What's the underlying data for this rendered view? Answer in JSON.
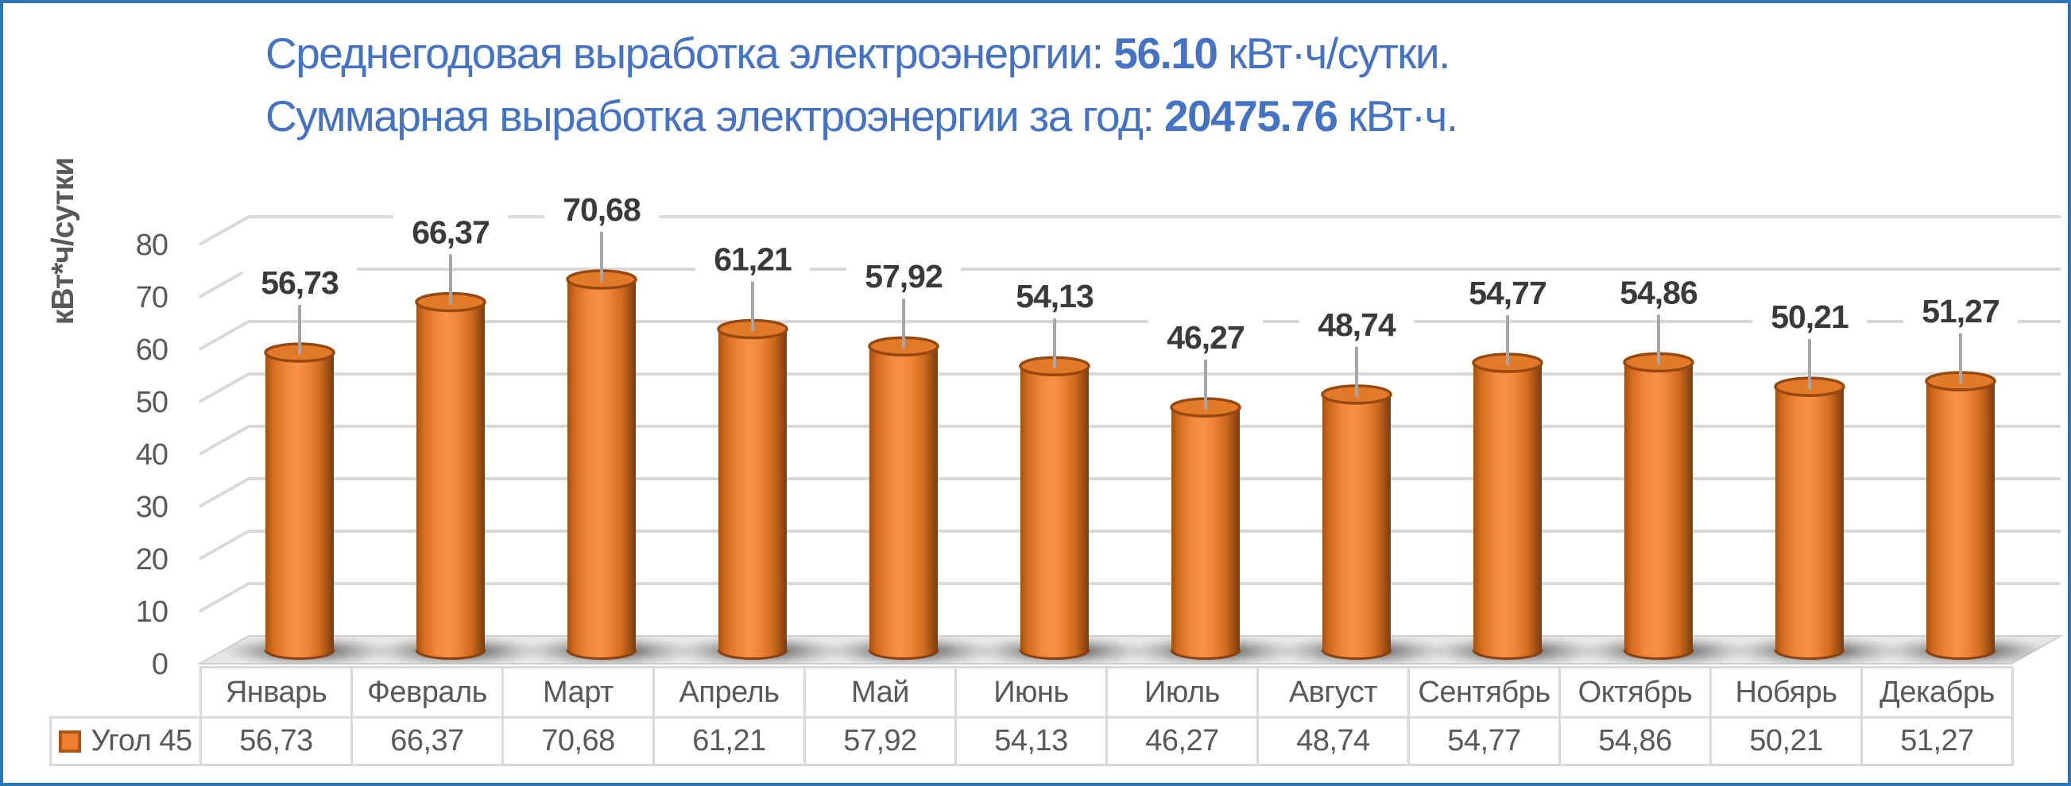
{
  "window": {
    "background": "#FFFFFF",
    "frame_color": "#2E75B6"
  },
  "title": {
    "color": "#4472C4",
    "line1_prefix": "Среднегодовая выработка электроэнергии: ",
    "line1_value": "56.10",
    "line1_suffix": " кВт·ч/сутки.",
    "line2_prefix": "Суммарная выработка электроэнергии за год: ",
    "line2_value": "20475.76",
    "line2_suffix": " кВт·ч."
  },
  "chart_data": {
    "type": "bar",
    "subtype": "3d-cylinder",
    "title": "",
    "categories": [
      "Январь",
      "Февраль",
      "Март",
      "Апрель",
      "Май",
      "Июнь",
      "Июль",
      "Август",
      "Сентябрь",
      "Октябрь",
      "Нобярь",
      "Декабрь"
    ],
    "series": [
      {
        "name": "Угол 45",
        "color": "#ED7D31",
        "values": [
          56.73,
          66.37,
          70.68,
          61.21,
          57.92,
          54.13,
          46.27,
          48.74,
          54.77,
          54.86,
          50.21,
          51.27
        ],
        "labels": [
          "56,73",
          "66,37",
          "70,68",
          "61,21",
          "57,92",
          "54,13",
          "46,27",
          "48,74",
          "54,77",
          "54,86",
          "50,21",
          "51,27"
        ]
      }
    ],
    "xlabel": "",
    "ylabel": "кВт*ч/сутки",
    "ylim": [
      0,
      80
    ],
    "yticks": [
      0,
      10,
      20,
      30,
      40,
      50,
      60,
      70,
      80
    ],
    "grid": true,
    "data_labels": true,
    "legend_position": "bottom-left-table"
  },
  "table": {
    "legend": {
      "label": "Угол 45",
      "swatch_color": "#ED7D31",
      "swatch_border": "#AE5714"
    }
  },
  "colors": {
    "gridline": "#D9D9D9",
    "axis_text": "#595959",
    "data_label": "#3A3A3A",
    "table_border": "#D9D9D9",
    "floor": "#E7E7E7",
    "floor_edge": "#CFCFCF",
    "leader_line": "#A6A6A6",
    "cylinder_top": "#E37A2A",
    "cylinder_rim": "#96480F",
    "cylinder_bottom_rim": "#8A3F0E"
  }
}
